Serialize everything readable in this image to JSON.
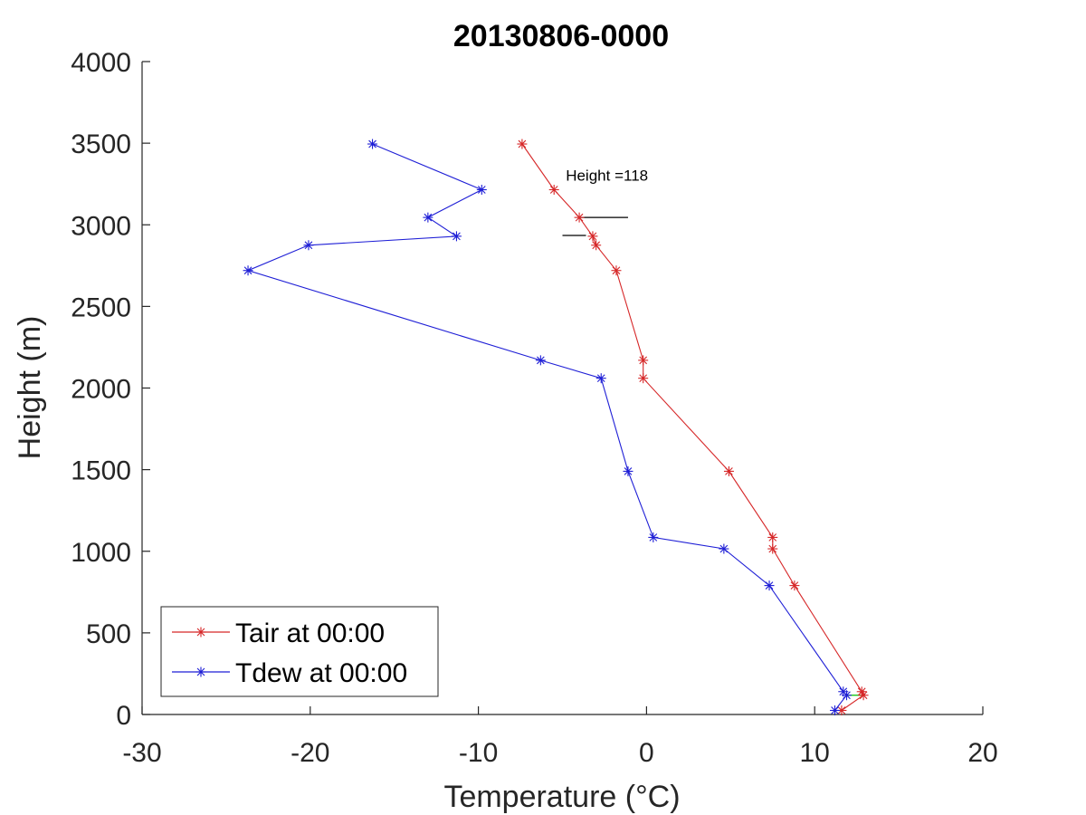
{
  "chart_data": {
    "type": "line",
    "title": "20130806-0000",
    "xlabel": "Temperature (°C)",
    "ylabel": "Height (m)",
    "xlim": [
      -30,
      20
    ],
    "ylim": [
      0,
      4000
    ],
    "xticks": [
      -30,
      -20,
      -10,
      0,
      10,
      20
    ],
    "yticks": [
      0,
      500,
      1000,
      1500,
      2000,
      2500,
      3000,
      3500,
      4000
    ],
    "grid": false,
    "legend_position": "bottom-left",
    "series": [
      {
        "name": "Tair at 00:00",
        "color": "#d62728",
        "marker": "asterisk",
        "points": [
          {
            "x": 11.6,
            "y": 25
          },
          {
            "x": 12.9,
            "y": 118
          },
          {
            "x": 12.8,
            "y": 140
          },
          {
            "x": 8.8,
            "y": 790
          },
          {
            "x": 7.5,
            "y": 1015
          },
          {
            "x": 7.5,
            "y": 1085
          },
          {
            "x": 4.9,
            "y": 1490
          },
          {
            "x": -0.2,
            "y": 2060
          },
          {
            "x": -0.2,
            "y": 2170
          },
          {
            "x": -1.8,
            "y": 2720
          },
          {
            "x": -3.0,
            "y": 2875
          },
          {
            "x": -3.2,
            "y": 2930
          },
          {
            "x": -4.0,
            "y": 3045
          },
          {
            "x": -5.5,
            "y": 3215
          },
          {
            "x": -7.4,
            "y": 3495
          }
        ]
      },
      {
        "name": "Tdew at 00:00",
        "color": "#1f1fd6",
        "marker": "asterisk",
        "points": [
          {
            "x": 11.2,
            "y": 25
          },
          {
            "x": 11.9,
            "y": 118
          },
          {
            "x": 11.7,
            "y": 140
          },
          {
            "x": 7.3,
            "y": 790
          },
          {
            "x": 4.6,
            "y": 1015
          },
          {
            "x": 0.4,
            "y": 1085
          },
          {
            "x": -1.1,
            "y": 1490
          },
          {
            "x": -2.7,
            "y": 2060
          },
          {
            "x": -6.3,
            "y": 2170
          },
          {
            "x": -23.7,
            "y": 2720
          },
          {
            "x": -20.1,
            "y": 2875
          },
          {
            "x": -11.3,
            "y": 2930
          },
          {
            "x": -13.0,
            "y": 3045
          },
          {
            "x": -9.8,
            "y": 3215
          },
          {
            "x": -16.3,
            "y": 3495
          }
        ]
      }
    ],
    "annotations": {
      "height_label": "Height =118",
      "height_label_at": {
        "x": -4.8,
        "y": 3270
      },
      "marker_lines": [
        {
          "x1": -4.0,
          "x2": -1.1,
          "y": 3045,
          "color": "#000000"
        },
        {
          "x1": -5.0,
          "x2": -3.6,
          "y": 2935,
          "color": "#000000"
        },
        {
          "x1": 11.9,
          "x2": 12.9,
          "y": 118,
          "color": "#00c000"
        }
      ]
    }
  }
}
